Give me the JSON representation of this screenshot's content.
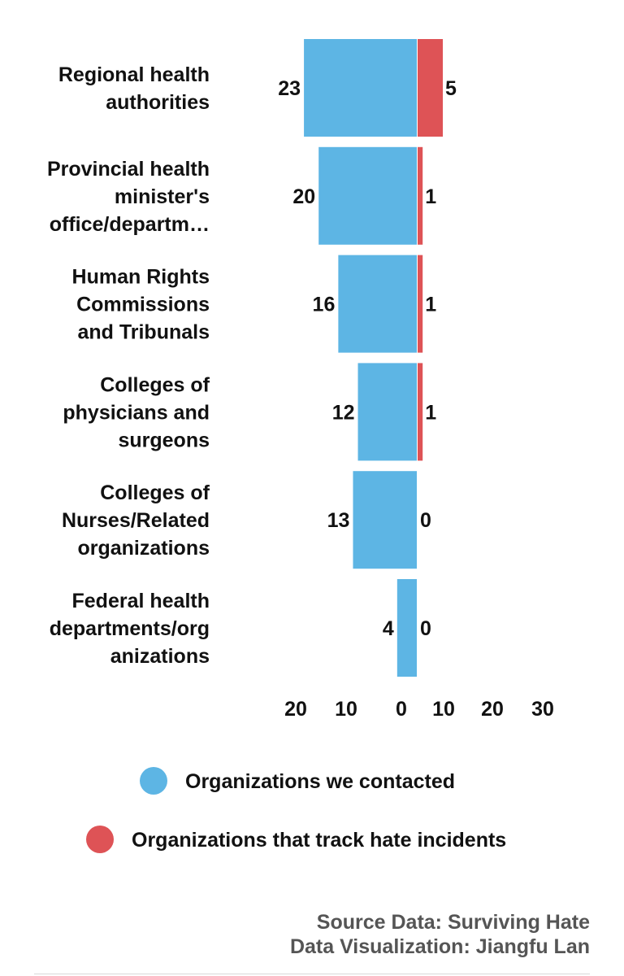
{
  "chart_data": {
    "type": "bar",
    "orientation": "horizontal-diverging",
    "categories": [
      [
        "Regional health",
        "authorities"
      ],
      [
        "Provincial health",
        "minister's",
        "office/departm…"
      ],
      [
        "Human Rights",
        "Commissions",
        "and Tribunals"
      ],
      [
        "Colleges of",
        "physicians and",
        "surgeons"
      ],
      [
        "Colleges of",
        "Nurses/Related",
        "organizations"
      ],
      [
        "Federal health",
        "departments/org",
        "anizations"
      ]
    ],
    "series": [
      {
        "name": "Organizations we contacted",
        "color": "#5DB5E4",
        "side": "left",
        "values": [
          23,
          20,
          16,
          12,
          13,
          4
        ]
      },
      {
        "name": "Organizations that track hate incidents",
        "color": "#DE5356",
        "side": "right",
        "values": [
          5,
          1,
          1,
          1,
          0,
          0
        ]
      }
    ],
    "left_ticks": [
      "20",
      "10",
      "0"
    ],
    "right_ticks": [
      "10",
      "20",
      "30"
    ],
    "legend_position": "bottom",
    "grid": false
  },
  "source": {
    "line1": "Source Data: Surviving Hate",
    "line2": "Data Visualization: Jiangfu Lan"
  }
}
